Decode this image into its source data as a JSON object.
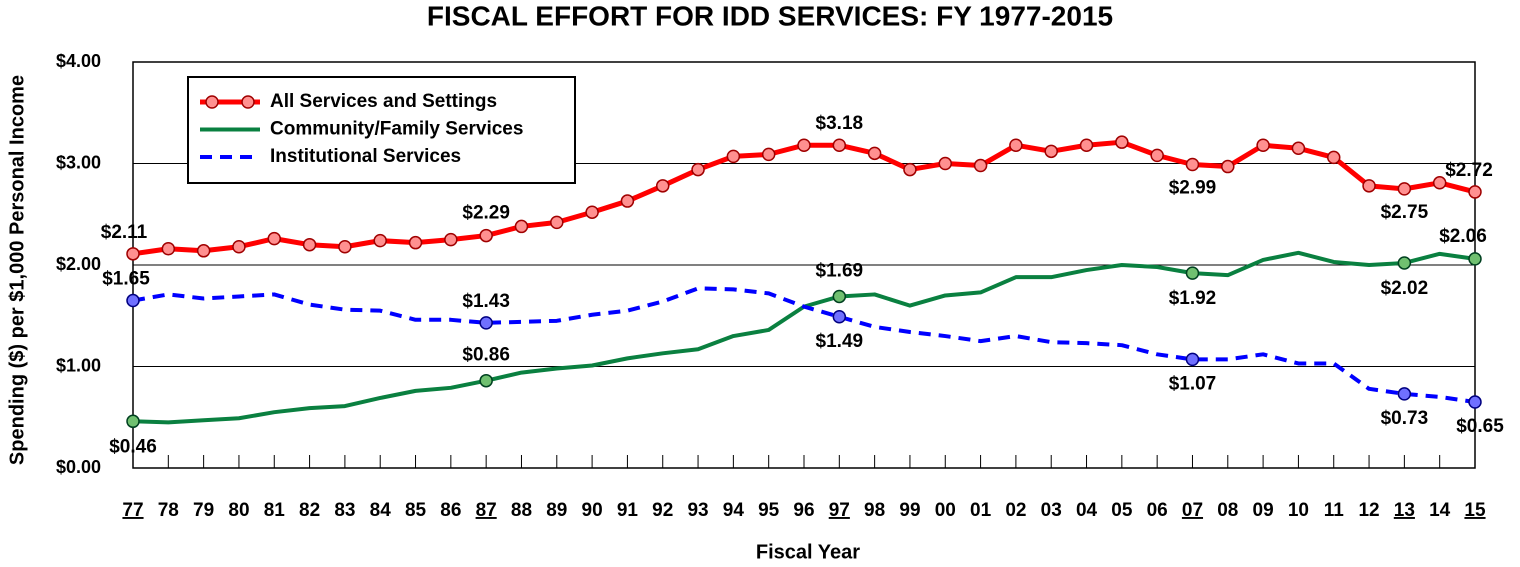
{
  "chart_data": {
    "type": "line",
    "title": "FISCAL EFFORT FOR IDD SERVICES: FY 1977-2015",
    "x_label": "Fiscal Year",
    "y_label": "Spending ($) per $1,000 Personal Income",
    "categories": [
      "77",
      "78",
      "79",
      "80",
      "81",
      "82",
      "83",
      "84",
      "85",
      "86",
      "87",
      "88",
      "89",
      "90",
      "91",
      "92",
      "93",
      "94",
      "95",
      "96",
      "97",
      "98",
      "99",
      "00",
      "01",
      "02",
      "03",
      "04",
      "05",
      "06",
      "07",
      "08",
      "09",
      "10",
      "11",
      "12",
      "13",
      "14",
      "15"
    ],
    "ylim": [
      0,
      4
    ],
    "yticks": [
      {
        "value": 0,
        "label": "$0.00"
      },
      {
        "value": 1,
        "label": "$1.00"
      },
      {
        "value": 2,
        "label": "$2.00"
      },
      {
        "value": 3,
        "label": "$3.00"
      },
      {
        "value": 4,
        "label": "$4.00"
      }
    ],
    "grid": true,
    "legend": "upper left",
    "series": [
      {
        "name": "All Services and Settings",
        "color": "#ff0000",
        "markers": "all",
        "dash": "solid",
        "values": [
          2.11,
          2.16,
          2.14,
          2.18,
          2.26,
          2.2,
          2.18,
          2.24,
          2.22,
          2.25,
          2.29,
          2.38,
          2.42,
          2.52,
          2.63,
          2.78,
          2.94,
          3.07,
          3.09,
          3.18,
          3.18,
          3.1,
          2.94,
          3.0,
          2.98,
          3.18,
          3.12,
          3.18,
          3.21,
          3.08,
          2.99,
          2.97,
          3.18,
          3.15,
          3.06,
          2.78,
          2.75,
          2.81,
          2.72
        ],
        "value_labels": [
          "$2.11",
          null,
          null,
          null,
          null,
          null,
          null,
          null,
          null,
          null,
          "$2.29",
          null,
          null,
          null,
          null,
          null,
          null,
          null,
          null,
          null,
          "$3.18",
          null,
          null,
          null,
          null,
          null,
          null,
          null,
          null,
          null,
          "$2.99",
          null,
          null,
          null,
          null,
          null,
          "$2.75",
          null,
          "$2.72"
        ]
      },
      {
        "name": "Community/Family Services",
        "color": "#0a8040",
        "markers": "labeled",
        "dash": "solid",
        "values": [
          0.46,
          0.45,
          0.47,
          0.49,
          0.55,
          0.59,
          0.61,
          0.69,
          0.76,
          0.79,
          0.86,
          0.94,
          0.98,
          1.01,
          1.08,
          1.13,
          1.17,
          1.3,
          1.36,
          1.59,
          1.69,
          1.71,
          1.6,
          1.7,
          1.73,
          1.88,
          1.88,
          1.95,
          2.0,
          1.98,
          1.92,
          1.9,
          2.05,
          2.12,
          2.03,
          2.0,
          2.02,
          2.11,
          2.06
        ],
        "value_labels": [
          "$0.46",
          null,
          null,
          null,
          null,
          null,
          null,
          null,
          null,
          null,
          "$0.86",
          null,
          null,
          null,
          null,
          null,
          null,
          null,
          null,
          null,
          "$1.69",
          null,
          null,
          null,
          null,
          null,
          null,
          null,
          null,
          null,
          "$1.92",
          null,
          null,
          null,
          null,
          null,
          "$2.02",
          null,
          "$2.06"
        ]
      },
      {
        "name": "Institutional Services",
        "color": "#0000ff",
        "markers": "labeled",
        "dash": "dashed",
        "values": [
          1.65,
          1.71,
          1.67,
          1.69,
          1.71,
          1.61,
          1.56,
          1.55,
          1.46,
          1.46,
          1.43,
          1.44,
          1.45,
          1.51,
          1.55,
          1.64,
          1.77,
          1.76,
          1.72,
          1.59,
          1.49,
          1.39,
          1.34,
          1.3,
          1.25,
          1.3,
          1.24,
          1.23,
          1.21,
          1.12,
          1.07,
          1.07,
          1.12,
          1.03,
          1.03,
          0.78,
          0.73,
          0.7,
          0.65
        ],
        "value_labels": [
          "$1.65",
          null,
          null,
          null,
          null,
          null,
          null,
          null,
          null,
          null,
          "$1.43",
          null,
          null,
          null,
          null,
          null,
          null,
          null,
          null,
          null,
          "$1.49",
          null,
          null,
          null,
          null,
          null,
          null,
          null,
          null,
          null,
          "$1.07",
          null,
          null,
          null,
          null,
          null,
          "$0.73",
          null,
          "$0.65"
        ]
      }
    ]
  }
}
